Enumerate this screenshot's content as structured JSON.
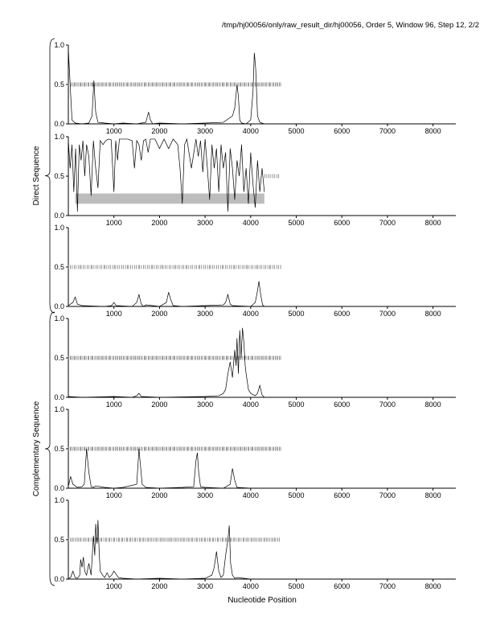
{
  "header": "/tmp/hj00056/only/raw_result_dir/hj00056, Order 5, Window 96, Step 12, 2/2",
  "colors": {
    "line": "#000000",
    "band": "#bdbdbd",
    "axis": "#000000"
  },
  "chart_data": {
    "type": "line",
    "xlabel": "Nucleotide Position",
    "xlim": [
      0,
      8500
    ],
    "ylim": [
      0,
      1
    ],
    "x_ticks": [
      1000,
      2000,
      3000,
      4000,
      5000,
      6000,
      7000,
      8000
    ],
    "y_ticks": [
      "0.0",
      "0.5",
      "1.0"
    ],
    "groups": [
      {
        "label": "Direct Sequence",
        "panels": [
          0,
          1,
          2
        ]
      },
      {
        "label": "Complementary Sequence",
        "panels": [
          3,
          4,
          5
        ]
      }
    ],
    "panels": [
      {
        "x": [
          0,
          80,
          150,
          300,
          450,
          520,
          560,
          600,
          650,
          800,
          1000,
          1200,
          1500,
          1700,
          1760,
          1800,
          1850,
          2000,
          2500,
          3000,
          3400,
          3600,
          3650,
          3700,
          3730,
          3760,
          3800,
          3900,
          4000,
          4050,
          4080,
          4110,
          4150,
          4200,
          4300,
          4600,
          8500
        ],
        "y": [
          0.95,
          0.05,
          0.01,
          0.0,
          0.01,
          0.1,
          0.55,
          0.15,
          0.02,
          0.01,
          0.0,
          0.01,
          0.0,
          0.02,
          0.15,
          0.05,
          0.0,
          0.01,
          0.0,
          0.01,
          0.02,
          0.1,
          0.2,
          0.5,
          0.35,
          0.05,
          0.01,
          0.0,
          0.05,
          0.4,
          0.9,
          0.7,
          0.1,
          0.02,
          0.0,
          0.0,
          0.0
        ],
        "ticks_x": [
          0,
          4650
        ],
        "ticks_y": 0.5,
        "tick_spacing": 30
      },
      {
        "x": [
          0,
          40,
          80,
          120,
          160,
          200,
          240,
          280,
          320,
          360,
          400,
          450,
          500,
          550,
          600,
          650,
          700,
          760,
          820,
          880,
          940,
          1000,
          1040,
          1080,
          1120,
          1200,
          1300,
          1400,
          1450,
          1500,
          1550,
          1600,
          1650,
          1700,
          1750,
          1800,
          1900,
          2000,
          2100,
          2200,
          2300,
          2400,
          2450,
          2500,
          2550,
          2600,
          2700,
          2800,
          2850,
          2900,
          2950,
          3000,
          3050,
          3100,
          3150,
          3200,
          3250,
          3300,
          3350,
          3400,
          3450,
          3500,
          3550,
          3600,
          3650,
          3700,
          3750,
          3800,
          3850,
          3900,
          3950,
          4000,
          4050,
          4100,
          4150,
          4200,
          4250,
          4300
        ],
        "y": [
          0.95,
          0.6,
          0.9,
          0.3,
          0.85,
          0.05,
          0.9,
          0.7,
          0.95,
          0.5,
          0.9,
          0.75,
          0.25,
          0.95,
          0.6,
          0.35,
          0.95,
          0.9,
          0.95,
          0.97,
          0.96,
          0.3,
          0.95,
          0.7,
          0.97,
          0.97,
          0.97,
          0.95,
          0.6,
          0.95,
          0.9,
          0.7,
          0.95,
          0.97,
          0.8,
          0.97,
          0.97,
          0.85,
          0.97,
          0.85,
          0.97,
          0.9,
          0.6,
          0.15,
          0.9,
          0.97,
          0.6,
          0.97,
          0.75,
          0.95,
          0.55,
          0.97,
          0.6,
          0.2,
          0.9,
          0.6,
          0.85,
          0.3,
          0.9,
          0.6,
          0.8,
          0.05,
          0.85,
          0.6,
          0.2,
          0.7,
          0.5,
          0.9,
          0.3,
          0.6,
          0.15,
          0.8,
          0.4,
          0.1,
          0.7,
          0.3,
          0.6,
          0.3
        ],
        "band": [
          150,
          4300,
          0.15,
          0.28
        ],
        "ticks_x": [
          4300,
          4650
        ],
        "ticks_y": 0.5,
        "tick_spacing": 45
      },
      {
        "x": [
          0,
          100,
          150,
          200,
          300,
          800,
          950,
          1000,
          1050,
          1400,
          1500,
          1550,
          1600,
          1650,
          1700,
          2000,
          2150,
          2200,
          2250,
          2300,
          2500,
          3000,
          3400,
          3450,
          3500,
          3550,
          3600,
          4000,
          4100,
          4150,
          4180,
          4220,
          4260,
          4300,
          4600,
          8500
        ],
        "y": [
          0.01,
          0.05,
          0.12,
          0.03,
          0.01,
          0.0,
          0.01,
          0.05,
          0.01,
          0.0,
          0.05,
          0.15,
          0.03,
          0.0,
          0.02,
          0.0,
          0.05,
          0.18,
          0.08,
          0.01,
          0.0,
          0.01,
          0.02,
          0.05,
          0.15,
          0.03,
          0.01,
          0.0,
          0.05,
          0.2,
          0.32,
          0.15,
          0.02,
          0.0,
          0.0,
          0.0
        ],
        "ticks_x": [
          0,
          4650
        ],
        "ticks_y": 0.5,
        "tick_spacing": 40
      },
      {
        "x": [
          0,
          300,
          1000,
          1400,
          1500,
          1550,
          1600,
          2000,
          3000,
          3300,
          3400,
          3450,
          3500,
          3550,
          3600,
          3650,
          3680,
          3700,
          3730,
          3760,
          3790,
          3820,
          3850,
          3880,
          3900,
          3950,
          4000,
          4100,
          4150,
          4200,
          4250,
          4300,
          4600,
          8500
        ],
        "y": [
          0.01,
          0.0,
          0.01,
          0.0,
          0.02,
          0.05,
          0.01,
          0.0,
          0.01,
          0.02,
          0.05,
          0.1,
          0.3,
          0.45,
          0.25,
          0.6,
          0.4,
          0.75,
          0.3,
          0.85,
          0.5,
          0.88,
          0.7,
          0.4,
          0.3,
          0.1,
          0.05,
          0.02,
          0.05,
          0.15,
          0.03,
          0.0,
          0.0,
          0.0
        ],
        "ticks_x": [
          0,
          4650
        ],
        "ticks_y": 0.5,
        "tick_spacing": 30
      },
      {
        "x": [
          0,
          50,
          100,
          200,
          300,
          350,
          400,
          450,
          500,
          550,
          600,
          800,
          1000,
          1200,
          1500,
          1550,
          1580,
          1620,
          1700,
          2000,
          2500,
          2750,
          2800,
          2830,
          2860,
          2900,
          3000,
          3400,
          3550,
          3600,
          3650,
          3700,
          4000,
          8500
        ],
        "y": [
          0.02,
          0.15,
          0.05,
          0.01,
          0.02,
          0.05,
          0.5,
          0.2,
          0.02,
          0.01,
          0.03,
          0.01,
          0.0,
          0.01,
          0.05,
          0.5,
          0.3,
          0.05,
          0.01,
          0.0,
          0.01,
          0.02,
          0.35,
          0.45,
          0.2,
          0.02,
          0.01,
          0.0,
          0.05,
          0.25,
          0.1,
          0.01,
          0.0,
          0.0
        ],
        "ticks_x": [
          0,
          4650
        ],
        "ticks_y": 0.5,
        "tick_spacing": 30
      },
      {
        "x": [
          0,
          50,
          100,
          150,
          200,
          250,
          270,
          300,
          330,
          360,
          400,
          450,
          500,
          550,
          580,
          600,
          630,
          650,
          680,
          700,
          750,
          800,
          850,
          900,
          950,
          1000,
          1100,
          1200,
          1500,
          2000,
          2500,
          3000,
          3150,
          3200,
          3250,
          3300,
          3350,
          3400,
          3450,
          3500,
          3530,
          3560,
          3600,
          3650,
          3700,
          4000,
          8500
        ],
        "y": [
          0.01,
          0.02,
          0.1,
          0.02,
          0.01,
          0.05,
          0.25,
          0.15,
          0.28,
          0.1,
          0.05,
          0.2,
          0.05,
          0.55,
          0.3,
          0.7,
          0.45,
          0.75,
          0.3,
          0.1,
          0.05,
          0.02,
          0.08,
          0.02,
          0.05,
          0.1,
          0.02,
          0.01,
          0.0,
          0.01,
          0.0,
          0.01,
          0.05,
          0.15,
          0.35,
          0.1,
          0.02,
          0.05,
          0.3,
          0.5,
          0.68,
          0.2,
          0.05,
          0.01,
          0.02,
          0.0,
          0.0
        ],
        "ticks_x": [
          0,
          4650
        ],
        "ticks_y": 0.5,
        "tick_spacing": 35
      }
    ]
  }
}
